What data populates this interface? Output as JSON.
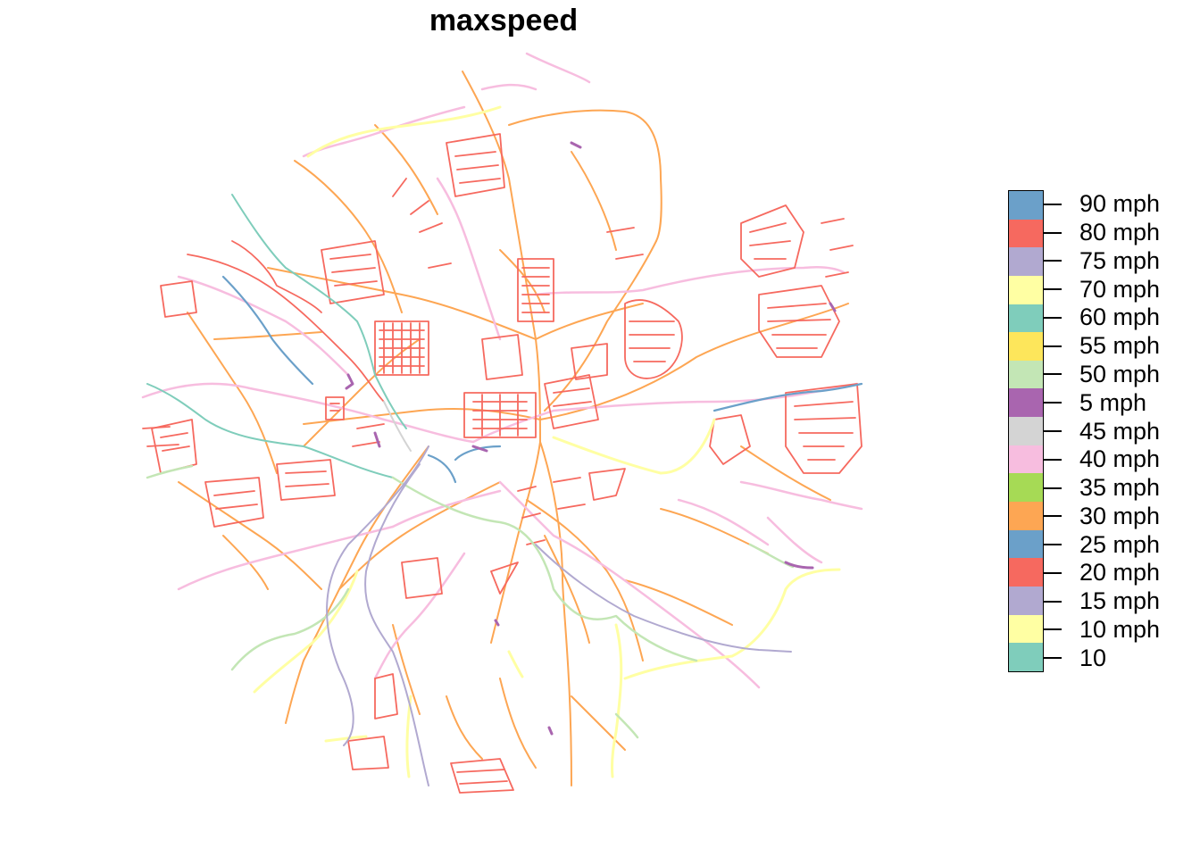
{
  "title": "maxspeed",
  "legend": {
    "entries": [
      {
        "label": "90 mph",
        "color": "#6BA0C9"
      },
      {
        "label": "80 mph",
        "color": "#F6695F"
      },
      {
        "label": "75 mph",
        "color": "#B1A9D0"
      },
      {
        "label": "70 mph",
        "color": "#FFFFA3"
      },
      {
        "label": "60 mph",
        "color": "#7FCDBB"
      },
      {
        "label": "55 mph",
        "color": "#FDE65B"
      },
      {
        "label": "50 mph",
        "color": "#C3E6B5"
      },
      {
        "label": "5 mph",
        "color": "#A965AF"
      },
      {
        "label": "45 mph",
        "color": "#D4D4D4"
      },
      {
        "label": "40 mph",
        "color": "#F7BDDF"
      },
      {
        "label": "35 mph",
        "color": "#A6DA55"
      },
      {
        "label": "30 mph",
        "color": "#FDA653"
      },
      {
        "label": "25 mph",
        "color": "#6BA0C9"
      },
      {
        "label": "20 mph",
        "color": "#F6695F"
      },
      {
        "label": "15 mph",
        "color": "#B1A9D0"
      },
      {
        "label": "10 mph",
        "color": "#FFFFA3"
      },
      {
        "label": "10",
        "color": "#7FCDBB"
      }
    ]
  }
}
